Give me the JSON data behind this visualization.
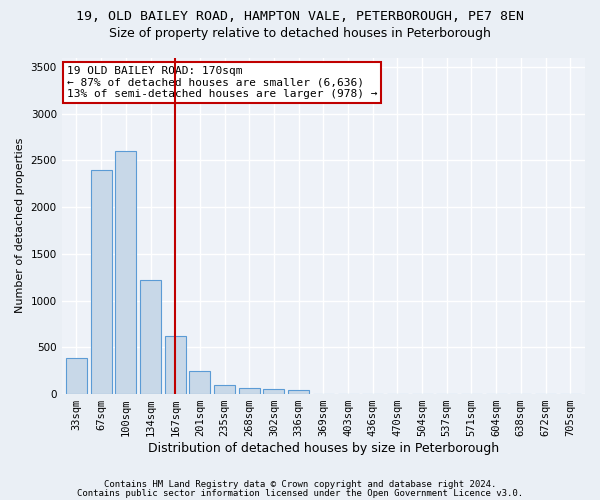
{
  "title1": "19, OLD BAILEY ROAD, HAMPTON VALE, PETERBOROUGH, PE7 8EN",
  "title2": "Size of property relative to detached houses in Peterborough",
  "xlabel": "Distribution of detached houses by size in Peterborough",
  "ylabel": "Number of detached properties",
  "footnote1": "Contains HM Land Registry data © Crown copyright and database right 2024.",
  "footnote2": "Contains public sector information licensed under the Open Government Licence v3.0.",
  "categories": [
    "33sqm",
    "67sqm",
    "100sqm",
    "134sqm",
    "167sqm",
    "201sqm",
    "235sqm",
    "268sqm",
    "302sqm",
    "336sqm",
    "369sqm",
    "403sqm",
    "436sqm",
    "470sqm",
    "504sqm",
    "537sqm",
    "571sqm",
    "604sqm",
    "638sqm",
    "672sqm",
    "705sqm"
  ],
  "values": [
    390,
    2400,
    2600,
    1220,
    620,
    250,
    100,
    60,
    55,
    40,
    0,
    0,
    0,
    0,
    0,
    0,
    0,
    0,
    0,
    0,
    0
  ],
  "bar_color": "#c8d8e8",
  "bar_edge_color": "#5b9bd5",
  "vline_x_idx": 4,
  "vline_color": "#c00000",
  "annotation_line1": "19 OLD BAILEY ROAD: 170sqm",
  "annotation_line2": "← 87% of detached houses are smaller (6,636)",
  "annotation_line3": "13% of semi-detached houses are larger (978) →",
  "annotation_box_color": "#ffffff",
  "annotation_box_edge": "#c00000",
  "ylim": [
    0,
    3600
  ],
  "yticks": [
    0,
    500,
    1000,
    1500,
    2000,
    2500,
    3000,
    3500
  ],
  "bg_color": "#eaeff5",
  "plot_bg_color": "#eef2f8",
  "grid_color": "#ffffff",
  "title_fontsize": 9.5,
  "subtitle_fontsize": 9,
  "ylabel_fontsize": 8,
  "xlabel_fontsize": 9,
  "tick_fontsize": 7.5,
  "annotation_fontsize": 8,
  "footnote_fontsize": 6.5
}
